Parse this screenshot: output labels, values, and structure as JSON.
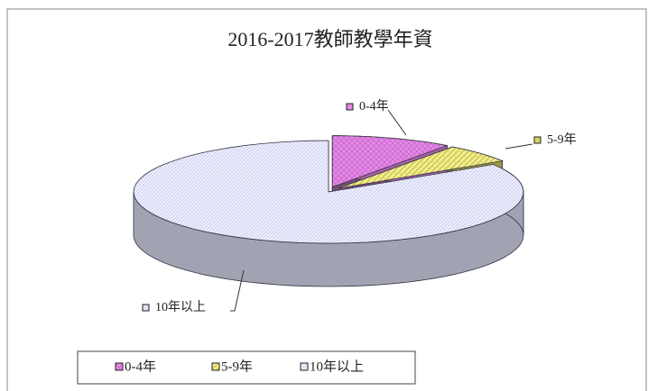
{
  "chart_data": {
    "type": "pie3d",
    "title": "2016-2017教師教學年資",
    "categories": [
      "0-4年",
      "5-9年",
      "10年以上"
    ],
    "values": [
      10,
      6,
      84
    ],
    "colors": [
      "#e58ae5",
      "#d9d45a",
      "#dfe1f7"
    ],
    "legend": "bottom"
  }
}
